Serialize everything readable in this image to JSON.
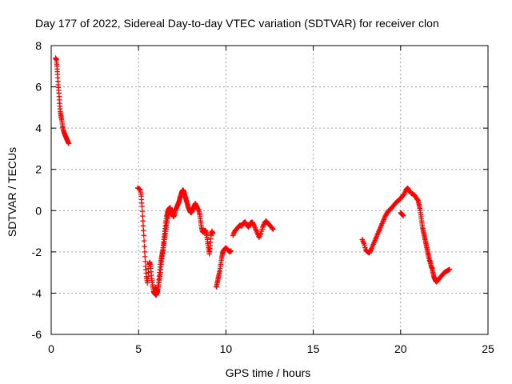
{
  "chart_data": {
    "type": "scatter",
    "title": "Day 177 of 2022, Sidereal Day-to-day VTEC variation (SDTVAR) for receiver clon",
    "xlabel": "GPS time / hours",
    "ylabel": "SDTVAR / TECUs",
    "xlim": [
      0,
      25
    ],
    "ylim": [
      -6,
      8
    ],
    "xticks": [
      0,
      5,
      10,
      15,
      20,
      25
    ],
    "yticks": [
      -6,
      -4,
      -2,
      0,
      2,
      4,
      6,
      8
    ],
    "grid": true,
    "marker": "+",
    "series": [
      {
        "name": "SDTVAR",
        "color": "#ff0000",
        "segments": [
          {
            "x": [
              0.25,
              0.3,
              0.33,
              0.36,
              0.4,
              0.44,
              0.48,
              0.52,
              0.56,
              0.6,
              0.65,
              0.7,
              0.75,
              0.8,
              0.85,
              0.9,
              0.95,
              1.0
            ],
            "y": [
              7.4,
              7.3,
              7.0,
              6.6,
              6.1,
              5.7,
              5.2,
              4.8,
              4.6,
              4.4,
              4.1,
              3.9,
              3.75,
              3.65,
              3.55,
              3.45,
              3.35,
              3.25
            ]
          },
          {
            "x": [
              4.95,
              5.05,
              5.1,
              5.15,
              5.2,
              5.25,
              5.3,
              5.35,
              5.4,
              5.45,
              5.5,
              5.55,
              5.6,
              5.65,
              5.7,
              5.75,
              5.8,
              5.85,
              5.9,
              5.95,
              6.0,
              6.05,
              6.1,
              6.15,
              6.2,
              6.25,
              6.3,
              6.35,
              6.4,
              6.45,
              6.5,
              6.55,
              6.6,
              6.65,
              6.7,
              6.75,
              6.8,
              6.85,
              6.9,
              6.95,
              7.0,
              7.05,
              7.1,
              7.15,
              7.2,
              7.25,
              7.3,
              7.35,
              7.4,
              7.45,
              7.5,
              7.55,
              7.6,
              7.65,
              7.7,
              7.75,
              7.8,
              7.85,
              7.9,
              7.95,
              8.0,
              8.05,
              8.1,
              8.15,
              8.2,
              8.25,
              8.3,
              8.35,
              8.4
            ],
            "y": [
              1.1,
              1.05,
              1.0,
              0.7,
              0.2,
              -0.5,
              -1.2,
              -2.0,
              -2.7,
              -3.2,
              -3.5,
              -3.2,
              -2.6,
              -2.5,
              -2.8,
              -3.3,
              -3.6,
              -3.9,
              -4.0,
              -4.05,
              -4.1,
              -4.0,
              -3.9,
              -3.6,
              -3.3,
              -3.0,
              -2.6,
              -2.2,
              -1.8,
              -1.4,
              -1.0,
              -0.6,
              -0.3,
              -0.1,
              0.05,
              0.1,
              0.15,
              0.0,
              -0.1,
              -0.2,
              -0.3,
              -0.2,
              0.0,
              0.1,
              0.2,
              0.3,
              0.4,
              0.55,
              0.7,
              0.85,
              0.95,
              1.0,
              0.9,
              0.75,
              0.6,
              0.45,
              0.3,
              0.15,
              0.05,
              -0.05,
              -0.1,
              -0.05,
              0.05,
              0.15,
              0.25,
              0.35,
              0.25,
              0.15,
              0.05
            ]
          },
          {
            "x": [
              5.95,
              6.0,
              6.05,
              6.1,
              6.15,
              6.2,
              6.25,
              6.3,
              6.35,
              6.4,
              6.45,
              6.5,
              6.55,
              6.6,
              6.65,
              6.7,
              6.75,
              6.8
            ],
            "y": [
              -3.7,
              -3.8,
              -3.9,
              -3.8,
              -3.5,
              -3.0,
              -2.6,
              -2.3,
              -2.1,
              -1.9,
              -1.6,
              -1.3,
              -1.0,
              -0.7,
              -0.4,
              -0.2,
              0.0,
              0.1
            ]
          },
          {
            "x": [
              8.45,
              8.5,
              8.55,
              8.6,
              8.65,
              8.7,
              8.75,
              8.8,
              8.85,
              8.9,
              8.95,
              9.0,
              9.05,
              9.1,
              9.15,
              9.2,
              9.25
            ],
            "y": [
              0.05,
              -0.2,
              -0.5,
              -0.8,
              -1.0,
              -1.05,
              -1.0,
              -0.95,
              -1.0,
              -1.2,
              -1.5,
              -1.8,
              -2.1,
              -1.7,
              -1.2,
              -1.0,
              -1.1
            ]
          },
          {
            "x": [
              9.45,
              9.5,
              9.55,
              9.6,
              9.65,
              9.7,
              9.75,
              9.8,
              9.85,
              9.9,
              9.95,
              10.0,
              10.1,
              10.2,
              10.3
            ],
            "y": [
              -3.7,
              -3.5,
              -3.3,
              -3.1,
              -2.9,
              -2.6,
              -2.3,
              -2.1,
              -1.95,
              -1.9,
              -1.85,
              -1.8,
              -1.9,
              -2.0,
              -1.95
            ]
          },
          {
            "x": [
              10.4,
              10.5,
              10.6,
              10.7,
              10.8,
              10.9,
              11.0,
              11.1,
              11.2,
              11.3,
              11.4,
              11.5,
              11.6,
              11.7,
              11.8,
              11.9,
              12.0,
              12.1,
              12.2,
              12.3,
              12.4,
              12.5,
              12.6,
              12.7
            ],
            "y": [
              -1.2,
              -1.0,
              -0.9,
              -0.8,
              -0.7,
              -0.75,
              -0.6,
              -0.55,
              -0.7,
              -0.8,
              -0.6,
              -0.55,
              -0.7,
              -0.9,
              -1.1,
              -1.3,
              -1.1,
              -0.8,
              -0.6,
              -0.5,
              -0.6,
              -0.7,
              -0.8,
              -0.9
            ]
          },
          {
            "x": [
              17.8,
              17.9,
              18.0,
              18.1,
              18.2,
              18.3,
              18.4,
              18.5,
              18.6,
              18.7,
              18.8,
              18.9,
              19.0,
              19.1,
              19.2,
              19.3,
              19.4,
              19.5,
              19.6,
              19.7,
              19.8,
              19.9,
              20.0,
              20.1,
              20.2,
              20.3,
              20.4,
              20.5,
              20.6,
              20.7,
              20.8,
              20.9,
              21.0,
              21.05,
              21.1,
              21.15,
              21.2,
              21.25,
              21.3,
              21.35,
              21.4,
              21.45,
              21.5,
              21.55,
              21.6,
              21.65,
              21.7,
              21.75,
              21.8,
              21.85,
              21.9,
              21.95,
              22.0,
              22.05,
              22.1,
              22.15,
              22.2,
              22.3,
              22.4,
              22.5,
              22.6,
              22.7,
              22.8
            ],
            "y": [
              -1.4,
              -1.6,
              -1.9,
              -2.0,
              -2.05,
              -1.9,
              -1.7,
              -1.5,
              -1.3,
              -1.1,
              -0.9,
              -0.7,
              -0.5,
              -0.3,
              -0.15,
              0.0,
              0.05,
              0.15,
              0.25,
              0.35,
              0.45,
              0.5,
              0.6,
              0.7,
              0.8,
              1.0,
              1.1,
              0.95,
              0.85,
              0.8,
              0.75,
              0.6,
              0.5,
              0.3,
              0.1,
              -0.2,
              -0.5,
              -0.8,
              -1.0,
              -1.2,
              -1.4,
              -1.6,
              -1.8,
              -2.0,
              -2.2,
              -2.4,
              -2.5,
              -2.7,
              -2.8,
              -3.0,
              -3.2,
              -3.3,
              -3.4,
              -3.45,
              -3.4,
              -3.35,
              -3.3,
              -3.2,
              -3.1,
              -3.0,
              -2.95,
              -2.9,
              -2.85
            ]
          },
          {
            "x": [
              20.0,
              20.05,
              20.1,
              20.15
            ],
            "y": [
              -0.1,
              -0.15,
              -0.2,
              -0.25
            ]
          }
        ]
      }
    ]
  }
}
